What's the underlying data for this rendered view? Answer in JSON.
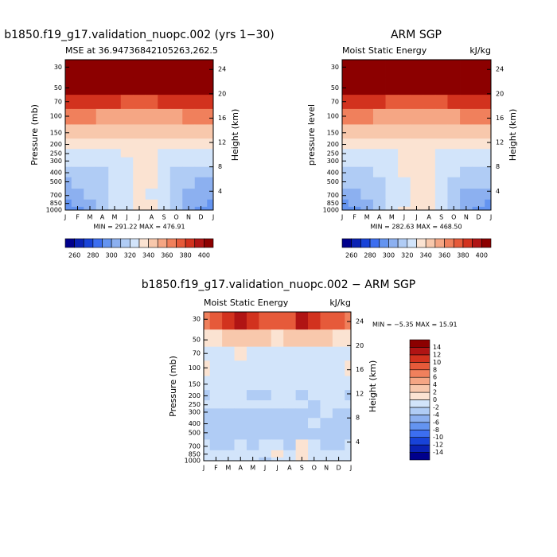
{
  "chart_data": [
    {
      "type": "contour",
      "title": "b1850.f19_g17.validation_nuopc.002 (yrs 1−30)",
      "subtitle_left": "MSE at 36.94736842105263,262.5",
      "ylabel": "Pressure (mb)",
      "y2label": "Height (km)",
      "stats": "MIN = 291.22  MAX = 476.91",
      "categories": [
        "J",
        "F",
        "M",
        "A",
        "M",
        "J",
        "J",
        "A",
        "S",
        "O",
        "N",
        "D",
        "J"
      ],
      "ylog": true,
      "ylim": [
        1000,
        25
      ],
      "yticks": [
        30,
        50,
        70,
        100,
        150,
        200,
        250,
        300,
        400,
        500,
        700,
        850,
        1000
      ],
      "y2lim": [
        0.9,
        25.6
      ],
      "y2ticks": [
        4,
        8,
        12,
        16,
        20,
        24
      ],
      "z": [
        [
          450,
          450,
          450,
          450,
          450,
          450,
          450,
          450,
          450,
          450,
          450,
          450,
          450
        ],
        [
          410,
          410,
          410,
          410,
          410,
          410,
          410,
          410,
          410,
          410,
          410,
          410,
          410
        ],
        [
          385,
          385,
          385,
          383,
          380,
          378,
          378,
          378,
          380,
          383,
          385,
          385,
          385
        ],
        [
          362,
          362,
          360,
          358,
          356,
          355,
          355,
          355,
          356,
          358,
          360,
          362,
          362
        ],
        [
          346,
          346,
          345,
          344,
          344,
          345,
          345,
          345,
          344,
          344,
          345,
          346,
          346
        ],
        [
          336,
          336,
          335,
          334,
          335,
          337,
          338,
          338,
          336,
          334,
          334,
          335,
          336
        ],
        [
          326,
          326,
          325,
          325,
          327,
          330,
          332,
          332,
          328,
          325,
          325,
          326,
          326
        ],
        [
          320,
          320,
          320,
          321,
          324,
          328,
          332,
          332,
          326,
          321,
          320,
          320,
          320
        ],
        [
          314,
          315,
          316,
          318,
          322,
          328,
          332,
          332,
          325,
          318,
          315,
          314,
          314
        ],
        [
          308,
          310,
          313,
          316,
          320,
          327,
          331,
          330,
          323,
          315,
          311,
          309,
          308
        ],
        [
          303,
          306,
          310,
          315,
          320,
          326,
          330,
          329,
          322,
          314,
          308,
          304,
          303
        ],
        [
          298,
          302,
          307,
          314,
          320,
          327,
          333,
          332,
          323,
          313,
          305,
          300,
          298
        ],
        [
          295,
          299,
          305,
          313,
          320,
          328,
          334,
          333,
          324,
          312,
          303,
          297,
          295
        ]
      ],
      "levels": [
        260,
        270,
        280,
        290,
        300,
        310,
        320,
        330,
        340,
        350,
        360,
        370,
        380,
        390,
        400
      ],
      "colors": [
        "#00008c",
        "#0a22b4",
        "#1843d8",
        "#3c6ef0",
        "#6494f0",
        "#8cb0f0",
        "#b0ccf5",
        "#d2e4fa",
        "#fbe3d2",
        "#f8c8ac",
        "#f5a684",
        "#f0805c",
        "#e65a3a",
        "#d2321e",
        "#b01414",
        "#8c0000"
      ],
      "cticks": [
        260,
        280,
        300,
        320,
        340,
        360,
        380,
        400
      ]
    },
    {
      "type": "contour",
      "title": "ARM SGP",
      "subtitle_left": "Moist Static Energy",
      "subtitle_right": "kJ/kg",
      "ylabel": "pressure level",
      "y2label": "Height (km)",
      "stats": "MIN = 282.63  MAX = 468.50",
      "categories": [
        "J",
        "F",
        "M",
        "A",
        "M",
        "J",
        "J",
        "A",
        "S",
        "O",
        "N",
        "D",
        "J"
      ],
      "ylog": true,
      "ylim": [
        1000,
        25
      ],
      "yticks": [
        30,
        50,
        70,
        100,
        150,
        200,
        250,
        300,
        400,
        500,
        700,
        850,
        1000
      ],
      "y2lim": [
        0.9,
        25.6
      ],
      "y2ticks": [
        4,
        8,
        12,
        16,
        20,
        24
      ],
      "z": [
        [
          445,
          445,
          445,
          445,
          445,
          445,
          445,
          445,
          445,
          445,
          445,
          445,
          445
        ],
        [
          408,
          408,
          408,
          408,
          408,
          408,
          408,
          408,
          408,
          408,
          408,
          408,
          408
        ],
        [
          384,
          384,
          384,
          382,
          379,
          377,
          377,
          377,
          379,
          382,
          384,
          384,
          384
        ],
        [
          362,
          362,
          360,
          358,
          356,
          355,
          355,
          355,
          356,
          358,
          360,
          362,
          362
        ],
        [
          346,
          346,
          345,
          344,
          344,
          345,
          345,
          345,
          344,
          344,
          345,
          346,
          346
        ],
        [
          337,
          337,
          336,
          335,
          336,
          338,
          339,
          339,
          337,
          335,
          335,
          336,
          337
        ],
        [
          327,
          327,
          326,
          326,
          328,
          331,
          334,
          333,
          329,
          326,
          326,
          327,
          327
        ],
        [
          322,
          322,
          322,
          323,
          326,
          330,
          334,
          334,
          328,
          323,
          322,
          322,
          322
        ],
        [
          316,
          317,
          318,
          320,
          324,
          330,
          334,
          334,
          327,
          320,
          317,
          316,
          316
        ],
        [
          310,
          312,
          315,
          318,
          322,
          329,
          333,
          332,
          325,
          317,
          313,
          311,
          310
        ],
        [
          304,
          307,
          311,
          317,
          322,
          328,
          332,
          331,
          324,
          316,
          309,
          305,
          304
        ],
        [
          299,
          303,
          308,
          315,
          321,
          329,
          335,
          334,
          325,
          314,
          306,
          301,
          299
        ],
        [
          295,
          299,
          305,
          313,
          321,
          330,
          336,
          335,
          326,
          313,
          303,
          297,
          295
        ]
      ],
      "levels": [
        260,
        270,
        280,
        290,
        300,
        310,
        320,
        330,
        340,
        350,
        360,
        370,
        380,
        390,
        400
      ],
      "colors": [
        "#00008c",
        "#0a22b4",
        "#1843d8",
        "#3c6ef0",
        "#6494f0",
        "#8cb0f0",
        "#b0ccf5",
        "#d2e4fa",
        "#fbe3d2",
        "#f8c8ac",
        "#f5a684",
        "#f0805c",
        "#e65a3a",
        "#d2321e",
        "#b01414",
        "#8c0000"
      ],
      "cticks": [
        260,
        280,
        300,
        320,
        340,
        360,
        380,
        400
      ]
    },
    {
      "type": "contour",
      "title": "b1850.f19_g17.validation_nuopc.002 − ARM SGP",
      "subtitle_left": "Moist Static Energy",
      "subtitle_right": "kJ/kg",
      "ylabel": "Pressure (mb)",
      "y2label": "Height (km)",
      "stats": "MIN =  −5.35  MAX =  15.91",
      "categories": [
        "J",
        "F",
        "M",
        "A",
        "M",
        "J",
        "J",
        "A",
        "S",
        "O",
        "N",
        "D",
        "J"
      ],
      "ylog": true,
      "ylim": [
        1000,
        25
      ],
      "yticks": [
        30,
        50,
        70,
        100,
        150,
        200,
        250,
        300,
        400,
        500,
        700,
        850,
        1000
      ],
      "y2lim": [
        0.9,
        25.6
      ],
      "y2ticks": [
        4,
        8,
        12,
        16,
        20,
        24
      ],
      "z": [
        [
          6,
          8,
          10,
          12,
          10,
          8,
          8,
          8,
          12,
          10,
          8,
          8,
          6
        ],
        [
          1,
          1,
          2,
          3,
          2,
          2,
          1,
          2,
          3,
          2,
          2,
          1,
          1
        ],
        [
          -1,
          -1,
          -1,
          0,
          -1,
          -1,
          -1,
          -1,
          -1,
          -1,
          -1,
          -1,
          -1
        ],
        [
          1,
          -1,
          -1,
          -1,
          -1,
          -1,
          -1,
          -1,
          -1,
          -1,
          -1,
          -1,
          1
        ],
        [
          -1,
          -1,
          -1,
          -1,
          -1,
          -1,
          -1,
          -1,
          -1,
          -1,
          -1,
          -1,
          -1
        ],
        [
          -3,
          -1,
          -1,
          -1,
          -3,
          -3,
          -1,
          -1,
          -3,
          -1,
          -1,
          -1,
          -3
        ],
        [
          -1,
          -1,
          -1,
          -1,
          -1,
          -1,
          -1,
          -1,
          -1,
          -3,
          -1,
          -1,
          -1
        ],
        [
          -3,
          -3,
          -3,
          -3,
          -3,
          -3,
          -3,
          -3,
          -3,
          -3,
          -1,
          -3,
          -3
        ],
        [
          -3,
          -3,
          -3,
          -3,
          -3,
          -3,
          -3,
          -3,
          -3,
          -1,
          -3,
          -3,
          -3
        ],
        [
          -3,
          -3,
          -3,
          -3,
          -3,
          -3,
          -3,
          -3,
          -3,
          -3,
          -3,
          -3,
          -3
        ],
        [
          -1,
          -3,
          -3,
          -1,
          -3,
          -1,
          -1,
          -3,
          1,
          -1,
          -3,
          -3,
          -1
        ],
        [
          -1,
          -1,
          -1,
          -1,
          -1,
          -1,
          1,
          -1,
          1,
          -1,
          -1,
          -1,
          -1
        ],
        [
          -1,
          -1,
          -1,
          -1,
          -1,
          -3,
          -1,
          -1,
          1,
          -1,
          -1,
          -1,
          -1
        ]
      ],
      "levels": [
        -14,
        -12,
        -10,
        -8,
        -6,
        -4,
        -2,
        0,
        2,
        4,
        6,
        8,
        10,
        12,
        14
      ],
      "colors": [
        "#00008c",
        "#0a22b4",
        "#1843d8",
        "#3c6ef0",
        "#6494f0",
        "#8cb0f0",
        "#b0ccf5",
        "#d2e4fa",
        "#fbe3d2",
        "#f8c8ac",
        "#f5a684",
        "#f0805c",
        "#e65a3a",
        "#d2321e",
        "#b01414",
        "#8c0000"
      ],
      "cticks": [
        -14,
        -12,
        -10,
        -8,
        -6,
        -4,
        -2,
        0,
        2,
        4,
        6,
        8,
        10,
        12,
        14
      ]
    }
  ]
}
